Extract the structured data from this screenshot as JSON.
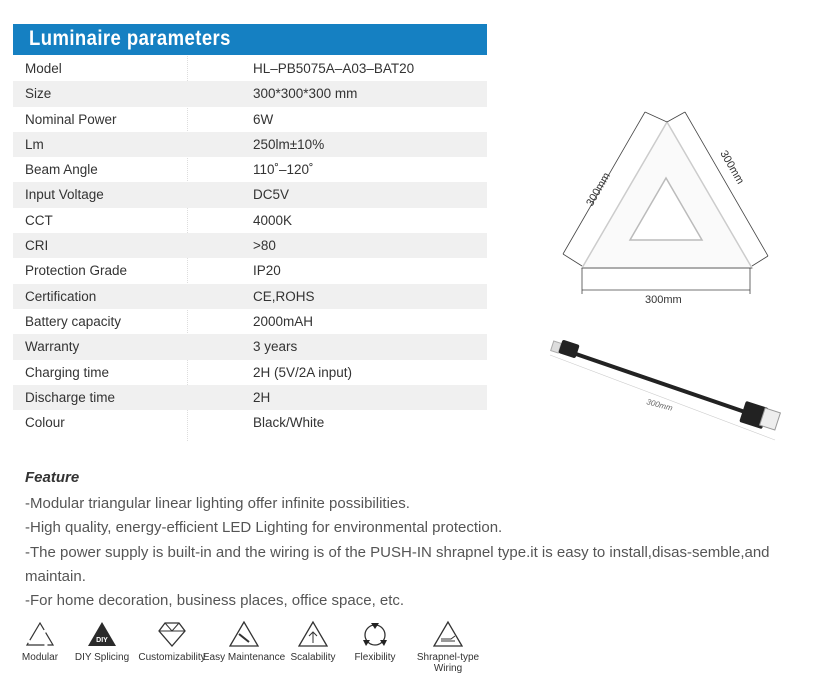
{
  "header": {
    "title": "Luminaire parameters"
  },
  "params": [
    {
      "label": "Model",
      "value": "HL–PB5075A–A03–BAT20"
    },
    {
      "label": "Size",
      "value": "300*300*300 mm"
    },
    {
      "label": "Nominal Power",
      "value": "6W"
    },
    {
      "label": "Lm",
      "value": "250lm±10%"
    },
    {
      "label": "Beam Angle",
      "value": "110˚–120˚"
    },
    {
      "label": "Input Voltage",
      "value": "DC5V"
    },
    {
      "label": "CCT",
      "value": "4000K"
    },
    {
      "label": "CRI",
      "value": ">80"
    },
    {
      "label": "Protection Grade",
      "value": "IP20"
    },
    {
      "label": "Certification",
      "value": "CE,ROHS"
    },
    {
      "label": "Battery capacity",
      "value": "2000mAH"
    },
    {
      "label": "Warranty",
      "value": "3 years"
    },
    {
      "label": "Charging time",
      "value": "2H (5V/2A input)"
    },
    {
      "label": "Discharge time",
      "value": "2H"
    },
    {
      "label": "Colour",
      "value": "Black/White"
    }
  ],
  "diagram": {
    "left": "300mm",
    "right": "300mm",
    "bottom": "300mm",
    "cable": "300mm"
  },
  "feature": {
    "title": "Feature",
    "lines": [
      "-Modular triangular linear lighting offer infinite possibilities.",
      "-High quality, energy-efficient LED Lighting for environmental protection.",
      "-The power supply is built-in and the wiring is of the PUSH-IN shrapnel type.it is easy to install,disas-semble,and maintain.",
      "-For home decoration, business places, office space, etc."
    ]
  },
  "icons": [
    {
      "name": "modular-icon",
      "label": "Modular"
    },
    {
      "name": "diy-icon",
      "label": "DIY Splicing",
      "badge": "DIY"
    },
    {
      "name": "diamond-icon",
      "label": "Customizability"
    },
    {
      "name": "wrench-icon",
      "label": "Easy Maintenance"
    },
    {
      "name": "arrow-up-icon",
      "label": "Scalability"
    },
    {
      "name": "cycle-icon",
      "label": "Flexibility"
    },
    {
      "name": "wiring-icon",
      "label": "Shrapnel-type Wiring"
    }
  ],
  "colors": {
    "header": "#1580c2"
  }
}
